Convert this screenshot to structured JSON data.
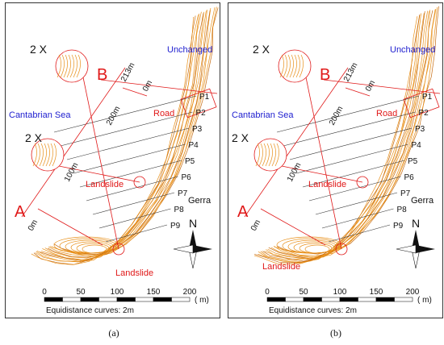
{
  "panels": [
    {
      "caption": "(a)",
      "sea_label": "Cantabrian Sea",
      "unchanged_label": "Unchanged",
      "road_label": "Road",
      "gerra_label": "Gerra",
      "landslide_labels": [
        "Landslide",
        "Landslide"
      ],
      "zoom_labels": [
        "2 X",
        "2 X"
      ],
      "profile_end_labels": [
        "A",
        "B"
      ],
      "distance_labels": [
        "0m",
        "100m",
        "200m",
        "213m",
        "0m"
      ],
      "profile_labels": [
        "P1",
        "P2",
        "P3",
        "P4",
        "P5",
        "P6",
        "P7",
        "P8",
        "P9"
      ],
      "scale_ticks": [
        "0",
        "50",
        "100",
        "150",
        "200"
      ],
      "scale_unit": "( m)",
      "equidistance_label": "Equidistance curves: 2m",
      "north_label": "N"
    },
    {
      "caption": "(b)",
      "sea_label": "Cantabrian Sea",
      "unchanged_label": "Unchanged",
      "road_label": "Road",
      "gerra_label": "Gerra",
      "landslide_labels": [
        "Landslide",
        "Landslide"
      ],
      "zoom_labels": [
        "2 X",
        "2 X"
      ],
      "profile_end_labels": [
        "A",
        "B"
      ],
      "distance_labels": [
        "0m",
        "100m",
        "200m",
        "213m",
        "0m"
      ],
      "profile_labels": [
        "P1",
        "P2",
        "P3",
        "P4",
        "P5",
        "P6",
        "P7",
        "P8",
        "P9"
      ],
      "scale_ticks": [
        "0",
        "50",
        "100",
        "150",
        "200"
      ],
      "scale_unit": "( m)",
      "equidistance_label": "Equidistance curves: 2m",
      "north_label": "N"
    }
  ],
  "colors": {
    "contour": "#e8901a",
    "contour_dark": "#c56a10",
    "annotation_red": "#e01818",
    "label_blue": "#2020d0",
    "profile_line": "#333333"
  }
}
